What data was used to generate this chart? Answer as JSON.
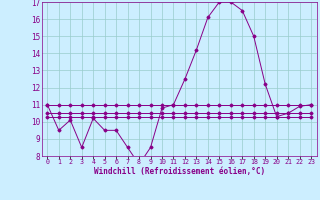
{
  "xlabel": "Windchill (Refroidissement éolien,°C)",
  "x_hours": [
    0,
    1,
    2,
    3,
    4,
    5,
    6,
    7,
    8,
    9,
    10,
    11,
    12,
    13,
    14,
    15,
    16,
    17,
    18,
    19,
    20,
    21,
    22,
    23
  ],
  "temp_line": [
    11,
    9.5,
    10.1,
    8.5,
    10.2,
    9.5,
    9.5,
    8.5,
    7.5,
    8.5,
    10.8,
    11,
    12.5,
    14.2,
    16.1,
    17.0,
    17.0,
    16.5,
    15.0,
    12.2,
    10.3,
    10.5,
    10.9,
    11.0
  ],
  "flat_line1": [
    11,
    11,
    11,
    11,
    11,
    11,
    11,
    11,
    11,
    11,
    11,
    11,
    11,
    11,
    11,
    11,
    11,
    11,
    11,
    11,
    11,
    11,
    11,
    11
  ],
  "flat_line2": [
    10.3,
    10.3,
    10.3,
    10.3,
    10.3,
    10.3,
    10.3,
    10.3,
    10.3,
    10.3,
    10.3,
    10.3,
    10.3,
    10.3,
    10.3,
    10.3,
    10.3,
    10.3,
    10.3,
    10.3,
    10.3,
    10.3,
    10.3,
    10.3
  ],
  "flat_line3": [
    10.5,
    10.5,
    10.5,
    10.5,
    10.5,
    10.5,
    10.5,
    10.5,
    10.5,
    10.5,
    10.5,
    10.5,
    10.5,
    10.5,
    10.5,
    10.5,
    10.5,
    10.5,
    10.5,
    10.5,
    10.5,
    10.5,
    10.5,
    10.5
  ],
  "line_color": "#880088",
  "bg_color": "#cceeff",
  "grid_color": "#99cccc",
  "ylim": [
    8,
    17
  ],
  "yticks": [
    8,
    9,
    10,
    11,
    12,
    13,
    14,
    15,
    16,
    17
  ],
  "xtick_labels": [
    "0",
    "1",
    "2",
    "3",
    "4",
    "5",
    "6",
    "7",
    "8",
    "9",
    "10",
    "11",
    "12",
    "13",
    "14",
    "15",
    "16",
    "17",
    "18",
    "19",
    "20",
    "21",
    "22",
    "23"
  ]
}
